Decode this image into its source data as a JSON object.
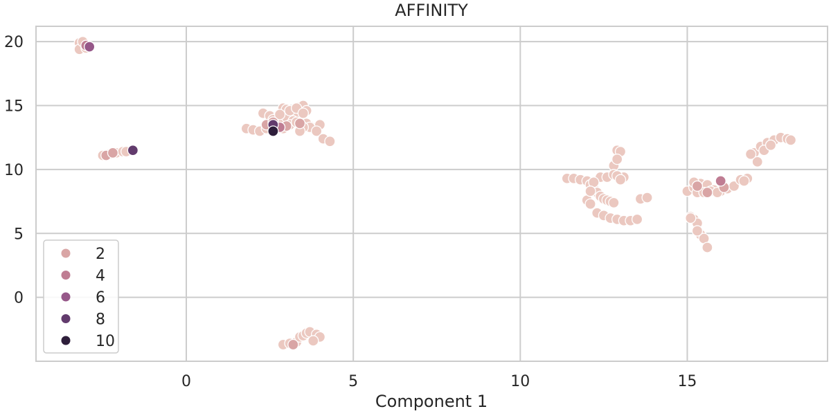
{
  "chart_data": {
    "type": "scatter",
    "title": "AFFINITY",
    "xlabel": "Component 1",
    "ylabel": "",
    "xlim": [
      -4.5,
      19.2
    ],
    "ylim": [
      -5.0,
      21.2
    ],
    "xticks": [
      0,
      5,
      10,
      15
    ],
    "yticks": [
      0,
      5,
      10,
      15,
      20
    ],
    "grid": true,
    "legend": {
      "placement": "lower-left",
      "entries": [
        {
          "label": "2",
          "color": "#d9a5a5"
        },
        {
          "label": "4",
          "color": "#bf7d93"
        },
        {
          "label": "6",
          "color": "#965889"
        },
        {
          "label": "8",
          "color": "#623b6d"
        },
        {
          "label": "10",
          "color": "#2e1e3b"
        }
      ]
    },
    "hue_colors": {
      "1": "#ebc8c0",
      "2": "#d9a5a5",
      "4": "#bf7d93",
      "6": "#965889",
      "8": "#623b6d",
      "10": "#2e1e3b"
    },
    "series": [
      {
        "x": [
          -3.2,
          -3.0,
          -3.2,
          -3.0,
          -3.1,
          -2.9
        ],
        "y": [
          19.9,
          19.7,
          19.4,
          19.5,
          20.0,
          19.6
        ],
        "hue": 1
      },
      {
        "x": [
          -3.0
        ],
        "y": [
          19.7
        ],
        "hue": 4
      },
      {
        "x": [
          -2.9
        ],
        "y": [
          19.6
        ],
        "hue": 6
      },
      {
        "x": [
          -2.5,
          -2.3,
          -2.1,
          -1.9,
          -1.8
        ],
        "y": [
          11.1,
          11.2,
          11.3,
          11.4,
          11.4
        ],
        "hue": 1
      },
      {
        "x": [
          -2.4,
          -2.2
        ],
        "y": [
          11.1,
          11.3
        ],
        "hue": 2
      },
      {
        "x": [
          -1.6
        ],
        "y": [
          11.5
        ],
        "hue": 8
      },
      {
        "x": [
          1.8,
          2.0,
          2.2,
          2.3,
          2.5,
          2.4,
          2.6,
          2.7,
          2.9,
          3.0,
          3.1,
          3.2,
          3.3,
          3.4,
          3.5,
          3.6,
          3.7,
          3.8,
          3.9,
          4.0,
          2.8,
          3.0,
          3.2,
          3.4,
          3.6,
          2.5,
          2.6,
          2.8,
          3.1,
          3.3,
          3.5,
          3.7,
          3.9,
          4.1,
          4.3,
          2.9,
          3.1,
          3.3,
          3.5,
          3.4,
          2.2,
          2.4
        ],
        "y": [
          13.2,
          13.1,
          13.0,
          14.4,
          14.2,
          13.5,
          13.6,
          14.0,
          14.8,
          14.7,
          14.5,
          14.3,
          14.2,
          14.9,
          15.0,
          14.6,
          13.4,
          13.2,
          13.3,
          13.5,
          13.9,
          14.1,
          13.8,
          13.1,
          13.6,
          13.4,
          13.9,
          14.3,
          14.6,
          14.8,
          14.4,
          13.3,
          13.0,
          12.4,
          12.2,
          13.2,
          13.5,
          13.7,
          13.3,
          13.0,
          13.0,
          13.2
        ],
        "hue": 1
      },
      {
        "x": [
          2.4,
          2.6,
          3.0,
          3.4
        ],
        "y": [
          13.5,
          13.7,
          13.4,
          13.6
        ],
        "hue": 2
      },
      {
        "x": [
          2.8
        ],
        "y": [
          13.3
        ],
        "hue": 4
      },
      {
        "x": [
          2.6
        ],
        "y": [
          13.5
        ],
        "hue": 8
      },
      {
        "x": [
          2.6
        ],
        "y": [
          13.0
        ],
        "hue": 10
      },
      {
        "x": [
          2.9,
          3.1,
          3.3,
          3.4,
          3.5,
          3.6,
          3.7,
          3.9,
          4.0,
          3.8
        ],
        "y": [
          -3.7,
          -3.6,
          -3.5,
          -3.1,
          -3.0,
          -2.8,
          -2.7,
          -2.9,
          -3.1,
          -3.4
        ],
        "hue": 1
      },
      {
        "x": [
          3.2
        ],
        "y": [
          -3.7
        ],
        "hue": 2
      },
      {
        "x": [
          11.4,
          11.6,
          11.8,
          12.0,
          12.1,
          12.2,
          12.3,
          12.4,
          12.5,
          12.6,
          12.7,
          12.8,
          12.9,
          13.0,
          13.1,
          12.8,
          12.9,
          12.0,
          12.1,
          12.3,
          12.5,
          12.7,
          12.9,
          13.1,
          13.3,
          13.5,
          13.6,
          13.8,
          12.4,
          12.6,
          12.8,
          12.9,
          13.0,
          12.2,
          12.1
        ],
        "y": [
          9.3,
          9.3,
          9.2,
          9.1,
          8.8,
          8.5,
          8.2,
          7.9,
          7.7,
          7.6,
          7.5,
          7.4,
          11.5,
          11.4,
          9.4,
          10.3,
          10.8,
          7.6,
          7.3,
          6.6,
          6.4,
          6.2,
          6.1,
          6.0,
          6.0,
          6.1,
          7.7,
          7.8,
          9.4,
          9.4,
          9.6,
          9.5,
          9.2,
          9.0,
          8.3
        ],
        "hue": 1
      },
      {
        "x": [
          15.0,
          15.2,
          15.4,
          15.6,
          15.8,
          16.0,
          16.2,
          16.4,
          16.6,
          16.8,
          15.3,
          15.5,
          15.7,
          15.1,
          15.2,
          15.3,
          15.4,
          15.5,
          15.6,
          15.1,
          15.3,
          17.0,
          17.2,
          17.4,
          17.6,
          17.8,
          18.0,
          18.1,
          17.1,
          16.9,
          17.3,
          17.5,
          16.7,
          15.9,
          15.2
        ],
        "y": [
          8.3,
          8.6,
          8.9,
          8.8,
          8.4,
          8.3,
          8.5,
          8.7,
          9.2,
          9.3,
          8.2,
          8.2,
          8.3,
          6.3,
          6.1,
          5.8,
          4.9,
          4.6,
          3.9,
          6.2,
          5.2,
          11.3,
          11.8,
          12.1,
          12.3,
          12.5,
          12.4,
          12.3,
          10.6,
          11.2,
          11.5,
          11.9,
          9.1,
          8.2,
          9.0
        ],
        "hue": 1
      },
      {
        "x": [
          15.3,
          15.6,
          16.1
        ],
        "y": [
          8.7,
          8.2,
          8.6
        ],
        "hue": 2
      },
      {
        "x": [
          16.0
        ],
        "y": [
          9.1
        ],
        "hue": 4
      }
    ]
  }
}
